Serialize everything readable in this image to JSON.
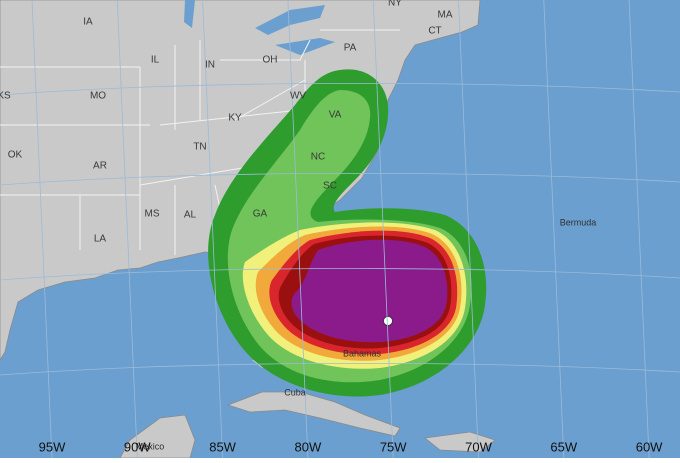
{
  "map": {
    "state_labels": [
      "IA",
      "NY",
      "MA",
      "CT",
      "PA",
      "IL",
      "IN",
      "OH",
      "MO",
      "KS",
      "OK",
      "AR",
      "KY",
      "TN",
      "WV",
      "VA",
      "NC",
      "SC",
      "GA",
      "AL",
      "MS",
      "LA"
    ],
    "place_labels": [
      "Bermuda",
      "Cuba",
      "Mexico",
      "Bahamas"
    ],
    "longitude_labels": [
      "95W",
      "90W",
      "85W",
      "80W",
      "75W",
      "70W",
      "65W",
      "60W"
    ]
  }
}
